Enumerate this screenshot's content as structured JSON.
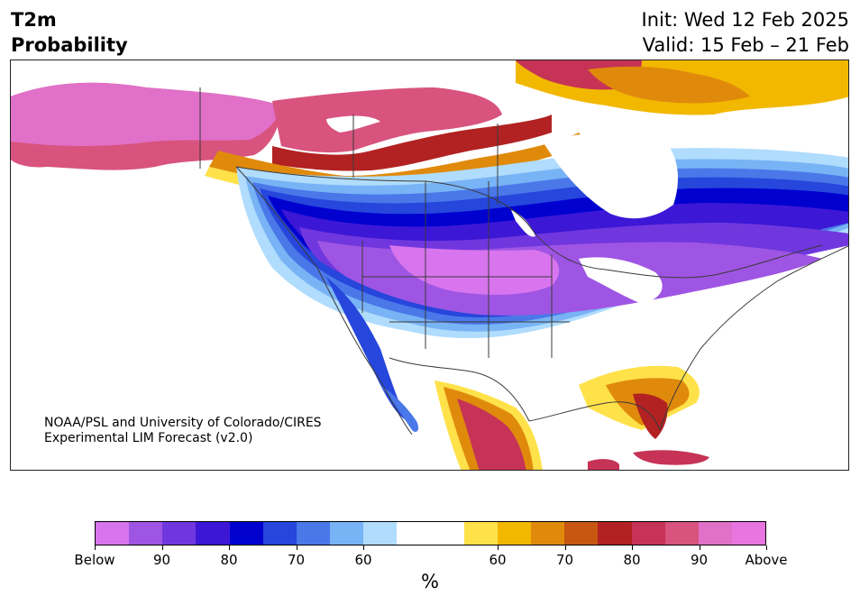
{
  "title": {
    "left_line1": "T2m",
    "left_line2": "Probability",
    "right_line1": "Init: Wed 12 Feb 2025",
    "right_line2": "Valid: 15 Feb – 21 Feb"
  },
  "credit": {
    "line1": "NOAA/PSL and University of Colorado/CIRES",
    "line2": "Experimental LIM Forecast (v2.0)"
  },
  "colorbar": {
    "colors": [
      "#d874ee",
      "#9f55e3",
      "#7137de",
      "#3c17d6",
      "#0000cf",
      "#2646dc",
      "#4a78e8",
      "#78b3f5",
      "#b0dcfd",
      "#ffffff",
      "#ffffff",
      "#ffe14a",
      "#f2b800",
      "#e08a0c",
      "#c75712",
      "#b22222",
      "#c63356",
      "#d8537e",
      "#e070c8",
      "#e875e0"
    ],
    "tick_labels": [
      "Below",
      "90",
      "80",
      "70",
      "60",
      "60",
      "70",
      "80",
      "90",
      "Above"
    ],
    "unit": "%"
  },
  "map": {
    "cold_colors": [
      "#b0dcfd",
      "#78b3f5",
      "#4a78e8",
      "#2646dc",
      "#0000cf",
      "#3c17d6",
      "#7137de",
      "#9f55e3",
      "#d874ee"
    ],
    "warm_colors": [
      "#ffe14a",
      "#f2b800",
      "#e08a0c",
      "#c75712",
      "#b22222",
      "#c63356",
      "#d8537e",
      "#e070c8"
    ],
    "line_color": "#3a3a3a"
  }
}
